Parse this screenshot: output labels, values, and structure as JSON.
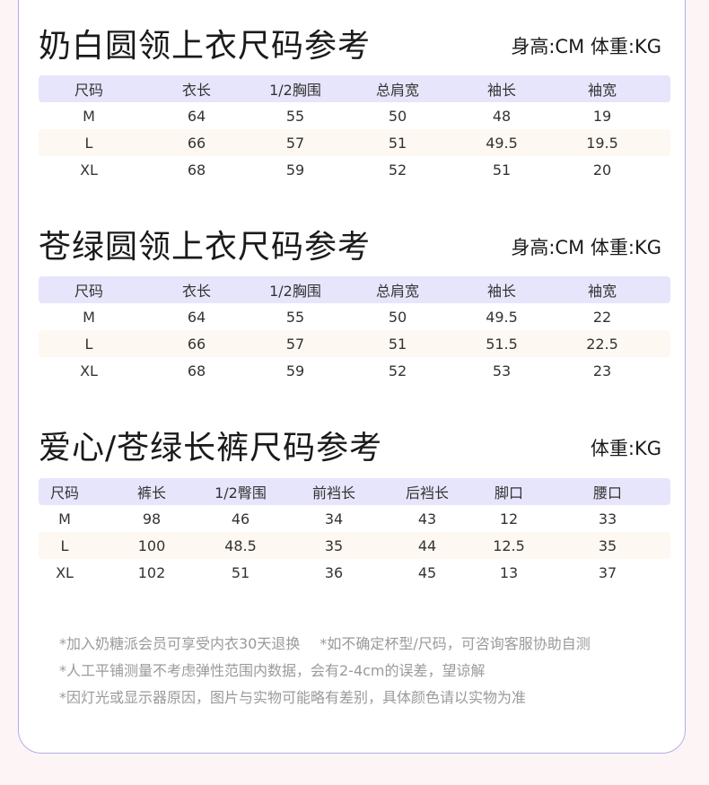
{
  "sections": [
    {
      "title": "奶白圆领上衣尺码参考",
      "units": "身高:CM 体重:KG",
      "headers": [
        "尺码",
        "衣长",
        "1/2胸围",
        "总肩宽",
        "袖长",
        "袖宽"
      ],
      "rows": [
        [
          "M",
          "64",
          "55",
          "50",
          "48",
          "19"
        ],
        [
          "L",
          "66",
          "57",
          "51",
          "49.5",
          "19.5"
        ],
        [
          "XL",
          "68",
          "59",
          "52",
          "51",
          "20"
        ]
      ]
    },
    {
      "title": "苍绿圆领上衣尺码参考",
      "units": "身高:CM 体重:KG",
      "headers": [
        "尺码",
        "衣长",
        "1/2胸围",
        "总肩宽",
        "袖长",
        "袖宽"
      ],
      "rows": [
        [
          "M",
          "64",
          "55",
          "50",
          "49.5",
          "22"
        ],
        [
          "L",
          "66",
          "57",
          "51",
          "51.5",
          "22.5"
        ],
        [
          "XL",
          "68",
          "59",
          "52",
          "53",
          "23"
        ]
      ]
    },
    {
      "title": "爱心/苍绿长裤尺码参考",
      "units": "体重:KG",
      "headers": [
        "尺码",
        "裤长",
        "1/2臀围",
        "前裆长",
        "后裆长",
        "脚口",
        "腰口"
      ],
      "rows": [
        [
          "M",
          "98",
          "46",
          "34",
          "43",
          "12",
          "33"
        ],
        [
          "L",
          "100",
          "48.5",
          "35",
          "44",
          "12.5",
          "35"
        ],
        [
          "XL",
          "102",
          "51",
          "36",
          "45",
          "13",
          "37"
        ]
      ]
    }
  ],
  "notes": [
    "*加入奶糖派会员可享受内衣30天退换",
    "*如不确定杯型/尺码，可咨询客服协助自测",
    "*人工平铺测量不考虑弹性范围内数据，会有2-4cm的误差，望谅解",
    "*因灯光或显示器原因，图片与实物可能略有差别，具体颜色请以实物为准"
  ],
  "colors": {
    "header_row": "#e7e5fb",
    "alt_row": "#fdf8f2",
    "card_border": "#b3acea",
    "page_bg": "#fdf5f5"
  }
}
